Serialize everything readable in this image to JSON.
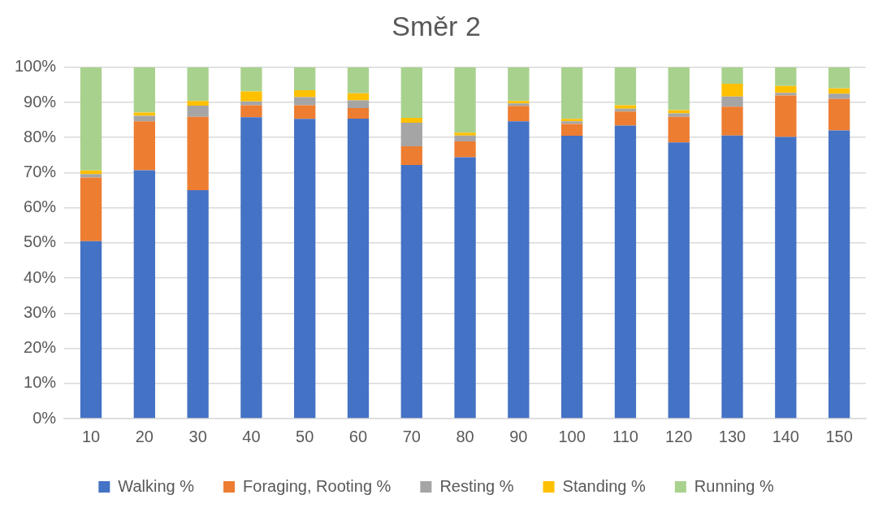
{
  "chart_data": {
    "type": "bar",
    "title": "Směr 2",
    "stacked": true,
    "grid": "y",
    "legend": "bottom",
    "categories": [
      "10",
      "20",
      "30",
      "40",
      "50",
      "60",
      "70",
      "80",
      "90",
      "100",
      "110",
      "120",
      "130",
      "140",
      "150"
    ],
    "ylim": [
      0,
      100
    ],
    "yticks": [
      {
        "value": 0,
        "label": "0%"
      },
      {
        "value": 10,
        "label": "10%"
      },
      {
        "value": 20,
        "label": "20%"
      },
      {
        "value": 30,
        "label": "30%"
      },
      {
        "value": 40,
        "label": "40%"
      },
      {
        "value": 50,
        "label": "50%"
      },
      {
        "value": 60,
        "label": "60%"
      },
      {
        "value": 70,
        "label": "70%"
      },
      {
        "value": 80,
        "label": "80%"
      },
      {
        "value": 90,
        "label": "90%"
      },
      {
        "value": 100,
        "label": "100%"
      }
    ],
    "series": [
      {
        "name": "Walking %",
        "color": "#4472c4",
        "values": [
          50.5,
          70.7,
          65.0,
          85.8,
          85.3,
          85.4,
          72.2,
          74.4,
          84.6,
          80.5,
          83.4,
          78.6,
          80.6,
          80.2,
          82.0
        ]
      },
      {
        "name": "Foraging, Rooting %",
        "color": "#ed7d31",
        "values": [
          18.1,
          13.9,
          20.9,
          3.4,
          3.9,
          3.0,
          5.3,
          4.5,
          4.4,
          3.4,
          4.0,
          7.3,
          8.2,
          11.8,
          9.0
        ]
      },
      {
        "name": "Resting %",
        "color": "#a5a5a5",
        "values": [
          1.0,
          1.6,
          3.2,
          1.1,
          2.3,
          2.2,
          6.7,
          1.7,
          0.7,
          0.7,
          0.8,
          1.0,
          2.9,
          0.7,
          1.5
        ]
      },
      {
        "name": "Standing %",
        "color": "#ffc000",
        "values": [
          1.0,
          0.9,
          1.3,
          2.8,
          2.0,
          2.0,
          1.4,
          0.8,
          0.7,
          0.7,
          1.0,
          0.9,
          3.6,
          2.0,
          1.5
        ]
      },
      {
        "name": "Running %",
        "color": "#a9d18e",
        "values": [
          29.4,
          12.9,
          9.6,
          6.9,
          6.5,
          7.4,
          14.4,
          18.6,
          9.6,
          14.7,
          10.8,
          12.2,
          4.7,
          5.3,
          6.0
        ]
      }
    ]
  }
}
